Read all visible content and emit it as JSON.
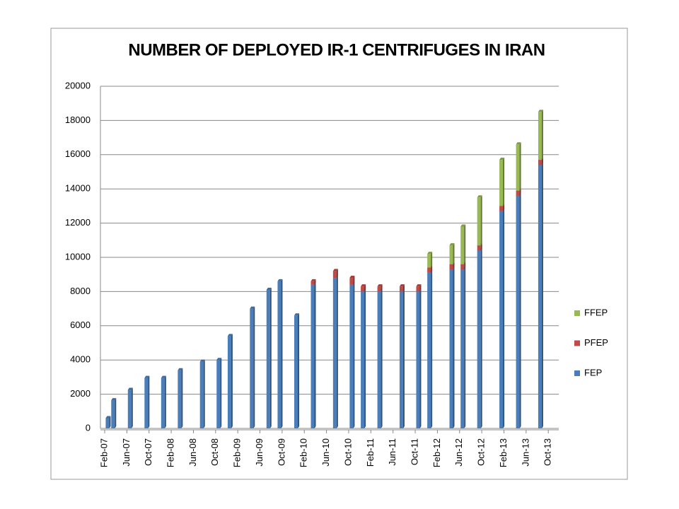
{
  "chart_data": {
    "type": "stacked_bar",
    "title": "NUMBER OF DEPLOYED IR-1 CENTRIFUGES IN IRAN",
    "categories": [
      "Feb-07",
      null,
      null,
      null,
      "Jun-07",
      null,
      null,
      null,
      "Oct-07",
      null,
      null,
      null,
      "Feb-08",
      null,
      null,
      null,
      "Jun-08",
      null,
      null,
      null,
      "Oct-08",
      null,
      null,
      null,
      "Feb-09",
      null,
      null,
      null,
      "Jun-09",
      null,
      null,
      null,
      "Oct-09",
      null,
      null,
      null,
      "Feb-10",
      null,
      null,
      null,
      "Jun-10",
      null,
      null,
      null,
      "Oct-10",
      null,
      null,
      null,
      "Feb-11",
      null,
      null,
      null,
      "Jun-11",
      null,
      null,
      null,
      "Oct-11",
      null,
      null,
      null,
      "Feb-12",
      null,
      null,
      null,
      "Jun-12",
      null,
      null,
      null,
      "Oct-12",
      null,
      null,
      null,
      "Feb-13",
      null,
      null,
      null,
      "Jun-13",
      null,
      null,
      null,
      "Oct-13"
    ],
    "series": [
      {
        "name": "FEP",
        "color": "#4a7ebb",
        "values": [
          600,
          1650,
          null,
          null,
          2250,
          null,
          null,
          2950,
          null,
          null,
          2950,
          null,
          null,
          3400,
          null,
          null,
          null,
          3900,
          null,
          null,
          4000,
          null,
          5400,
          null,
          null,
          null,
          7000,
          null,
          null,
          8100,
          null,
          8600,
          null,
          null,
          6600,
          null,
          null,
          8400,
          null,
          null,
          null,
          8800,
          null,
          null,
          8400,
          null,
          8000,
          null,
          null,
          8000,
          null,
          null,
          null,
          8000,
          null,
          null,
          8000,
          null,
          9100,
          null,
          null,
          null,
          9300,
          null,
          9300,
          null,
          null,
          10400,
          null,
          null,
          null,
          12700,
          null,
          null,
          13600,
          null,
          null,
          null,
          15400,
          null,
          null
        ]
      },
      {
        "name": "PFEP",
        "color": "#be4b48",
        "values": [
          0,
          0,
          null,
          null,
          0,
          null,
          null,
          0,
          null,
          null,
          0,
          null,
          null,
          0,
          null,
          null,
          null,
          0,
          null,
          null,
          0,
          null,
          0,
          null,
          null,
          null,
          0,
          null,
          null,
          0,
          null,
          0,
          null,
          null,
          0,
          null,
          null,
          200,
          null,
          null,
          null,
          400,
          null,
          null,
          400,
          null,
          300,
          null,
          null,
          300,
          null,
          null,
          null,
          300,
          null,
          null,
          300,
          null,
          300,
          null,
          null,
          null,
          300,
          null,
          300,
          null,
          null,
          300,
          null,
          null,
          null,
          300,
          null,
          null,
          300,
          null,
          null,
          null,
          300,
          null,
          null
        ]
      },
      {
        "name": "FFEP",
        "color": "#98b954",
        "values": [
          0,
          0,
          null,
          null,
          0,
          null,
          null,
          0,
          null,
          null,
          0,
          null,
          null,
          0,
          null,
          null,
          null,
          0,
          null,
          null,
          0,
          null,
          0,
          null,
          null,
          null,
          0,
          null,
          null,
          0,
          null,
          0,
          null,
          null,
          0,
          null,
          null,
          0,
          null,
          null,
          null,
          0,
          null,
          null,
          0,
          null,
          0,
          null,
          null,
          0,
          null,
          null,
          null,
          0,
          null,
          null,
          0,
          null,
          800,
          null,
          null,
          null,
          1100,
          null,
          2200,
          null,
          null,
          2800,
          null,
          null,
          null,
          2700,
          null,
          null,
          2700,
          null,
          null,
          null,
          2800,
          null,
          null
        ]
      }
    ],
    "ylim": [
      0,
      20000
    ],
    "yticks": [
      0,
      2000,
      4000,
      6000,
      8000,
      10000,
      12000,
      14000,
      16000,
      18000,
      20000
    ],
    "grid": true,
    "legend": "right"
  }
}
